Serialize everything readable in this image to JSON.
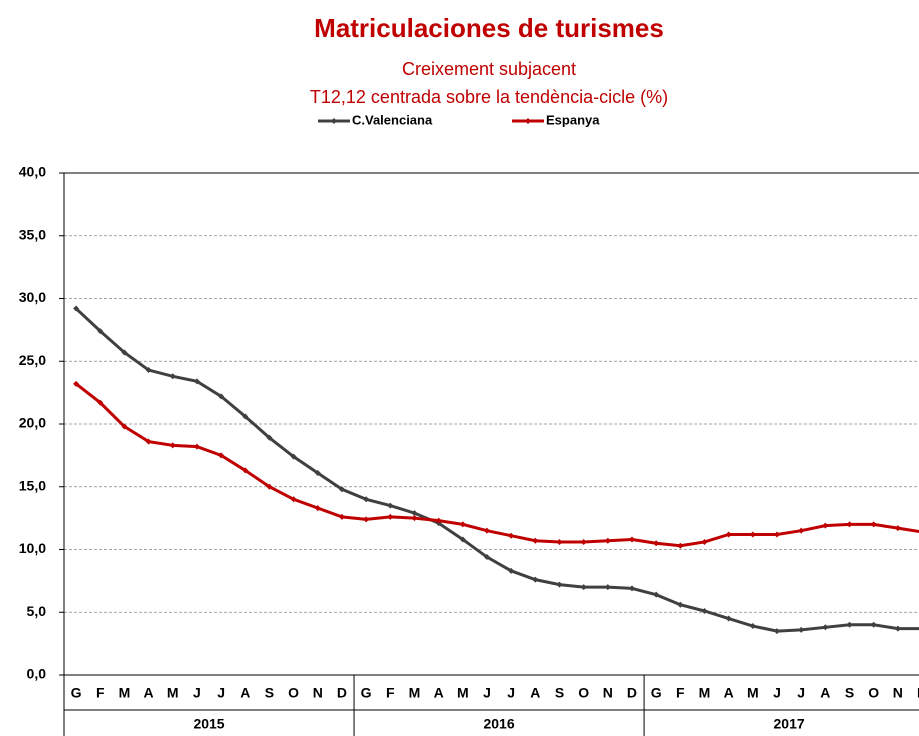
{
  "chart_data": {
    "type": "line",
    "title": "Matriculaciones de turismes",
    "subtitle": [
      "Creixement  subjacent",
      "T12,12 centrada sobre la tendència-cicle (%)"
    ],
    "categories": [
      "G",
      "F",
      "M",
      "A",
      "M",
      "J",
      "J",
      "A",
      "S",
      "O",
      "N",
      "D",
      "G",
      "F",
      "M",
      "A",
      "M",
      "J",
      "J",
      "A",
      "S",
      "O",
      "N",
      "D",
      "G",
      "F",
      "M",
      "A",
      "M",
      "J",
      "J",
      "A",
      "S",
      "O",
      "N",
      "D"
    ],
    "year_labels": [
      "2015",
      "2016",
      "2017"
    ],
    "series": [
      {
        "name": "C.Valenciana",
        "color": "#404040",
        "values": [
          29.2,
          27.4,
          25.7,
          24.3,
          23.8,
          23.4,
          22.2,
          20.6,
          18.9,
          17.4,
          16.1,
          14.8,
          14.0,
          13.5,
          12.9,
          12.1,
          10.8,
          9.4,
          8.3,
          7.6,
          7.2,
          7.0,
          7.0,
          6.9,
          6.4,
          5.6,
          5.1,
          4.5,
          3.9,
          3.5,
          3.6,
          3.8,
          4.0,
          4.0,
          3.7,
          3.7
        ]
      },
      {
        "name": "Espanya",
        "color": "#c00000",
        "values": [
          23.2,
          21.7,
          19.8,
          18.6,
          18.3,
          18.2,
          17.5,
          16.3,
          15.0,
          14.0,
          13.3,
          12.6,
          12.4,
          12.6,
          12.5,
          12.3,
          12.0,
          11.5,
          11.1,
          10.7,
          10.6,
          10.6,
          10.7,
          10.8,
          10.5,
          10.3,
          10.6,
          11.2,
          11.2,
          11.2,
          11.5,
          11.9,
          12.0,
          12.0,
          11.7,
          11.4
        ]
      }
    ],
    "ylim": [
      0,
      40
    ],
    "yticks": [
      {
        "value": 0,
        "label": "0,0"
      },
      {
        "value": 5,
        "label": "5,0"
      },
      {
        "value": 10,
        "label": "10,0"
      },
      {
        "value": 15,
        "label": "15,0"
      },
      {
        "value": 20,
        "label": "20,0"
      },
      {
        "value": 25,
        "label": "25,0"
      },
      {
        "value": 30,
        "label": "30,0"
      },
      {
        "value": 35,
        "label": "35,0"
      },
      {
        "value": 40,
        "label": "40,0"
      }
    ],
    "grid": true,
    "legend": "top"
  }
}
